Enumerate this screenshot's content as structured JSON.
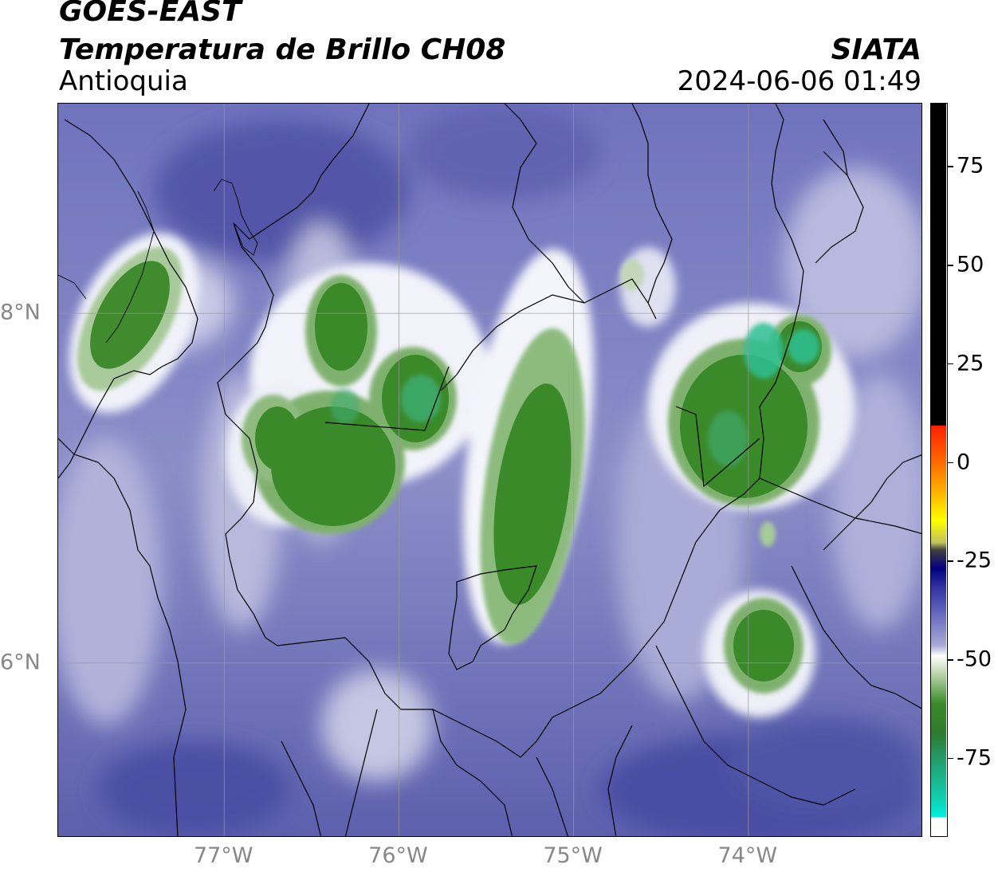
{
  "header": {
    "satellite": "GOES-EAST",
    "product": "Temperatura de Brillo CH08",
    "region": "Antioquia",
    "source": "SIATA",
    "datetime": "2024-06-06 01:49"
  },
  "map": {
    "lon_range": [
      -77.95,
      -73.0
    ],
    "lat_range": [
      5.0,
      9.2
    ],
    "xticks": [
      {
        "lon": -77,
        "label": "77°W"
      },
      {
        "lon": -76,
        "label": "76°W"
      },
      {
        "lon": -75,
        "label": "75°W"
      },
      {
        "lon": -74,
        "label": "74°W"
      }
    ],
    "yticks": [
      {
        "lat": 8,
        "label": "8°N"
      },
      {
        "lat": 6,
        "label": "6°N"
      }
    ],
    "gridlines": true,
    "background_color": "#8b8ec8",
    "cold_cloud_regions": [
      {
        "name": "northwest-coast",
        "lon": -77.55,
        "lat": 8.05,
        "cold_core": true
      },
      {
        "name": "uraba-cluster-a",
        "lon": -76.35,
        "lat": 7.85,
        "cold_core": true
      },
      {
        "name": "uraba-cluster-b",
        "lon": -75.95,
        "lat": 7.6,
        "cold_core": true
      },
      {
        "name": "west-cluster",
        "lon": -76.45,
        "lat": 7.25,
        "cold_core": true
      },
      {
        "name": "central-band",
        "lon": -75.2,
        "lat": 7.2,
        "cold_core": true
      },
      {
        "name": "magdalena-cluster",
        "lon": -74.1,
        "lat": 7.55,
        "cold_core": true
      },
      {
        "name": "southeast-cluster",
        "lon": -73.9,
        "lat": 6.15,
        "cold_core": true
      }
    ]
  },
  "colorbar": {
    "range": [
      -95,
      91
    ],
    "ticks": [
      75,
      50,
      25,
      0,
      -25,
      -50,
      -75
    ],
    "colors": {
      "black": "#000000",
      "red": "#ff2000",
      "orange": "#ff9500",
      "yellow": "#ffff00",
      "navy": "#000080",
      "lavender": "#8b8ec8",
      "white": "#ffffff",
      "green": "#3b8a2a",
      "cyan": "#00f0e0"
    }
  }
}
